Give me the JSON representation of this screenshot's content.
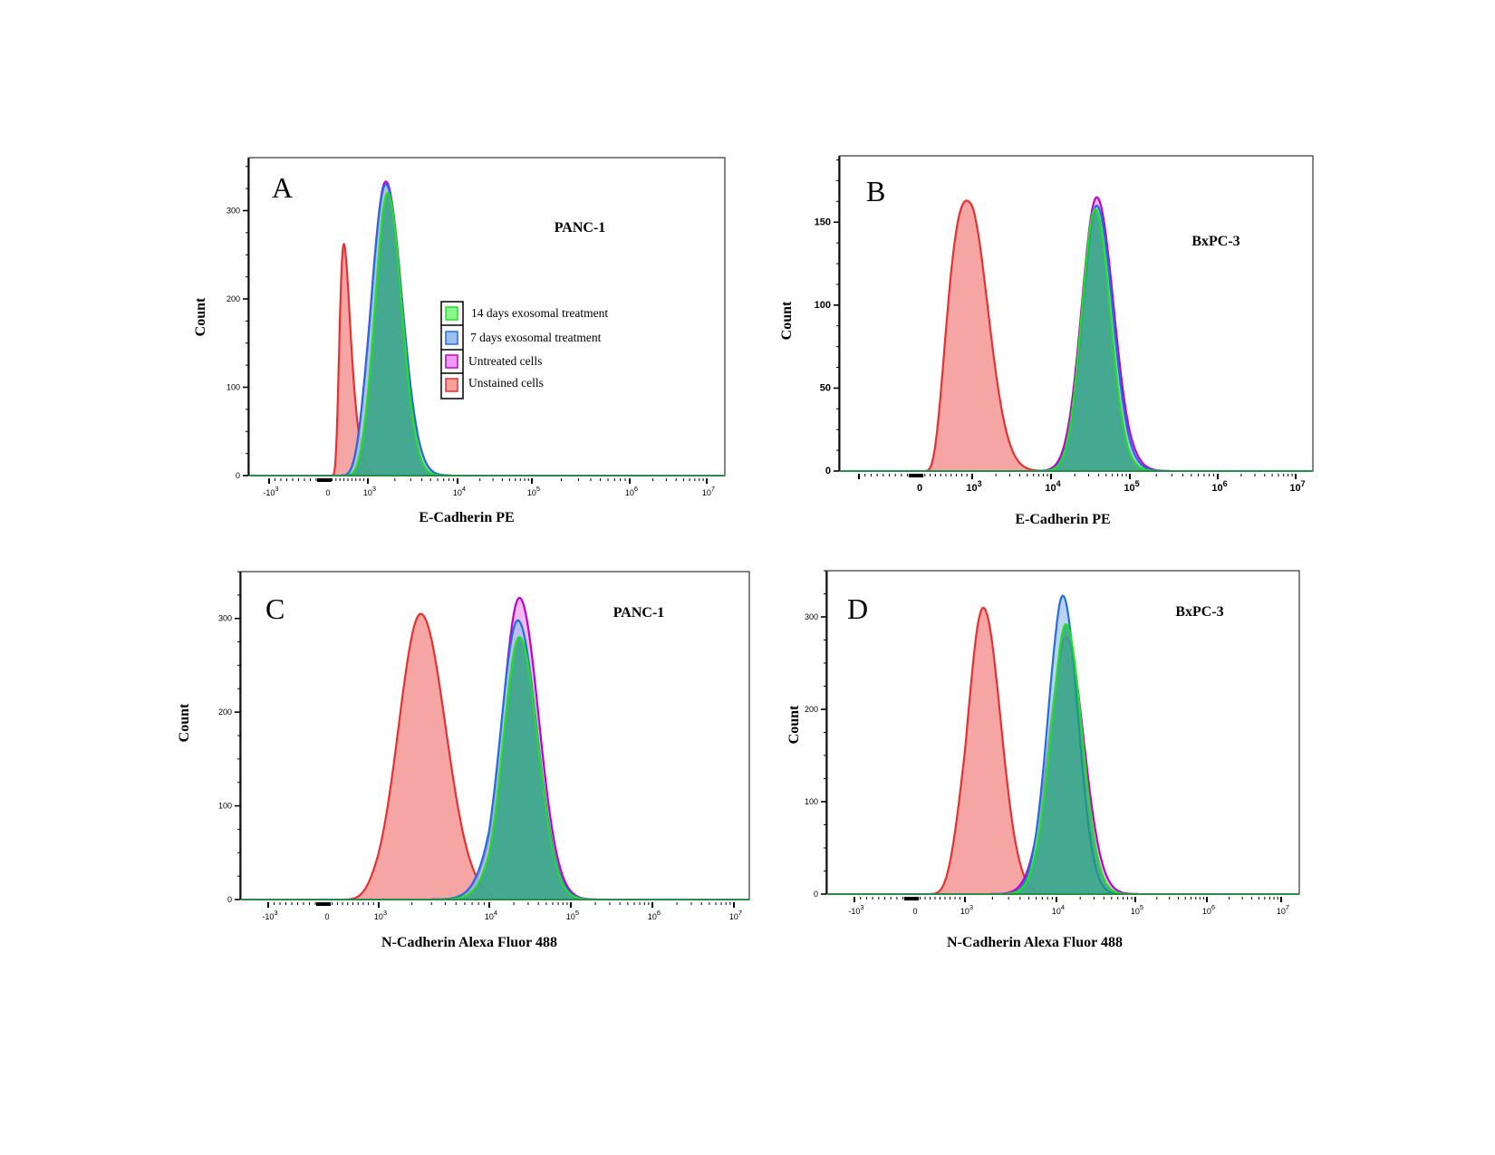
{
  "legend": {
    "items": [
      {
        "label": "14 days exosomal treatment",
        "stroke": "#22e022",
        "fill": "#8cf58c"
      },
      {
        "label": "7 days exosomal treatment",
        "stroke": "#1f6fe0",
        "fill": "#9cc0ee"
      },
      {
        "label": "Untreated cells",
        "stroke": "#c000d0",
        "fill": "#ee9cf0"
      },
      {
        "label": "Unstained cells",
        "stroke": "#e83030",
        "fill": "#f6a0a0"
      }
    ]
  },
  "chart_data": [
    {
      "panel": "A",
      "type": "area",
      "cell_line": "PANC-1",
      "xlabel": "E-Cadherin PE",
      "ylabel": "Count",
      "ylim": [
        0,
        360
      ],
      "yticks": [
        "0",
        "100",
        "200",
        "300"
      ],
      "xticks": [
        "-10^3",
        "0",
        "10^3",
        "10^4",
        "10^5",
        "10^6",
        "10^7"
      ],
      "grid": false,
      "legend_position": "center",
      "series": [
        {
          "name": "Unstained cells",
          "peak_log10": 2.6,
          "peak_count": 262,
          "width_decades": 0.14
        },
        {
          "name": "Untreated cells",
          "peak_log10": 3.2,
          "peak_count": 333,
          "width_decades": 0.16
        },
        {
          "name": "7 days exosomal treatment",
          "peak_log10": 3.2,
          "peak_count": 330,
          "width_decades": 0.16
        },
        {
          "name": "14 days exosomal treatment",
          "peak_log10": 3.22,
          "peak_count": 320,
          "width_decades": 0.14
        }
      ]
    },
    {
      "panel": "B",
      "type": "area",
      "cell_line": "BxPC-3",
      "xlabel": "E-Cadherin PE",
      "ylabel": "Count",
      "ylim": [
        0,
        190
      ],
      "yticks": [
        "0",
        "50",
        "100",
        "150"
      ],
      "xticks": [
        "0",
        "10^3",
        "10^4",
        "10^5",
        "10^6",
        "10^7"
      ],
      "grid": false,
      "series": [
        {
          "name": "Unstained cells",
          "peak_log10": 2.95,
          "peak_count": 163,
          "width_decades": 0.22
        },
        {
          "name": "Untreated cells",
          "peak_log10": 4.58,
          "peak_count": 165,
          "width_decades": 0.19
        },
        {
          "name": "7 days exosomal treatment",
          "peak_log10": 4.58,
          "peak_count": 160,
          "width_decades": 0.18
        },
        {
          "name": "14 days exosomal treatment",
          "peak_log10": 4.56,
          "peak_count": 158,
          "width_decades": 0.17
        }
      ]
    },
    {
      "panel": "C",
      "type": "area",
      "cell_line": "PANC-1",
      "xlabel": "N-Cadherin Alexa Fluor 488",
      "ylabel": "Count",
      "ylim": [
        0,
        350
      ],
      "yticks": [
        "0",
        "100",
        "200",
        "300"
      ],
      "xticks": [
        "-10^3",
        "0",
        "10^3",
        "10^4",
        "10^5",
        "10^6",
        "10^7"
      ],
      "grid": false,
      "series": [
        {
          "name": "Unstained cells",
          "peak_log10": 3.38,
          "peak_count": 305,
          "width_decades": 0.2
        },
        {
          "name": "Untreated cells",
          "peak_log10": 4.37,
          "peak_count": 322,
          "width_decades": 0.21
        },
        {
          "name": "7 days exosomal treatment",
          "peak_log10": 4.35,
          "peak_count": 298,
          "width_decades": 0.21
        },
        {
          "name": "14 days exosomal treatment",
          "peak_log10": 4.37,
          "peak_count": 280,
          "width_decades": 0.2
        }
      ]
    },
    {
      "panel": "D",
      "type": "area",
      "cell_line": "BxPC-3",
      "xlabel": "N-Cadherin Alexa Fluor 488",
      "ylabel": "Count",
      "ylim": [
        0,
        350
      ],
      "yticks": [
        "0",
        "100",
        "200",
        "300"
      ],
      "xticks": [
        "-10^3",
        "0",
        "10^3",
        "10^4",
        "10^5",
        "10^6",
        "10^7"
      ],
      "grid": false,
      "series": [
        {
          "name": "Unstained cells",
          "peak_log10": 3.2,
          "peak_count": 310,
          "width_decades": 0.17
        },
        {
          "name": "Untreated cells",
          "peak_log10": 4.12,
          "peak_count": 278,
          "width_decades": 0.2
        },
        {
          "name": "7 days exosomal treatment",
          "peak_log10": 4.08,
          "peak_count": 323,
          "width_decades": 0.17
        },
        {
          "name": "14 days exosomal treatment",
          "peak_log10": 4.12,
          "peak_count": 292,
          "width_decades": 0.18
        }
      ]
    }
  ]
}
